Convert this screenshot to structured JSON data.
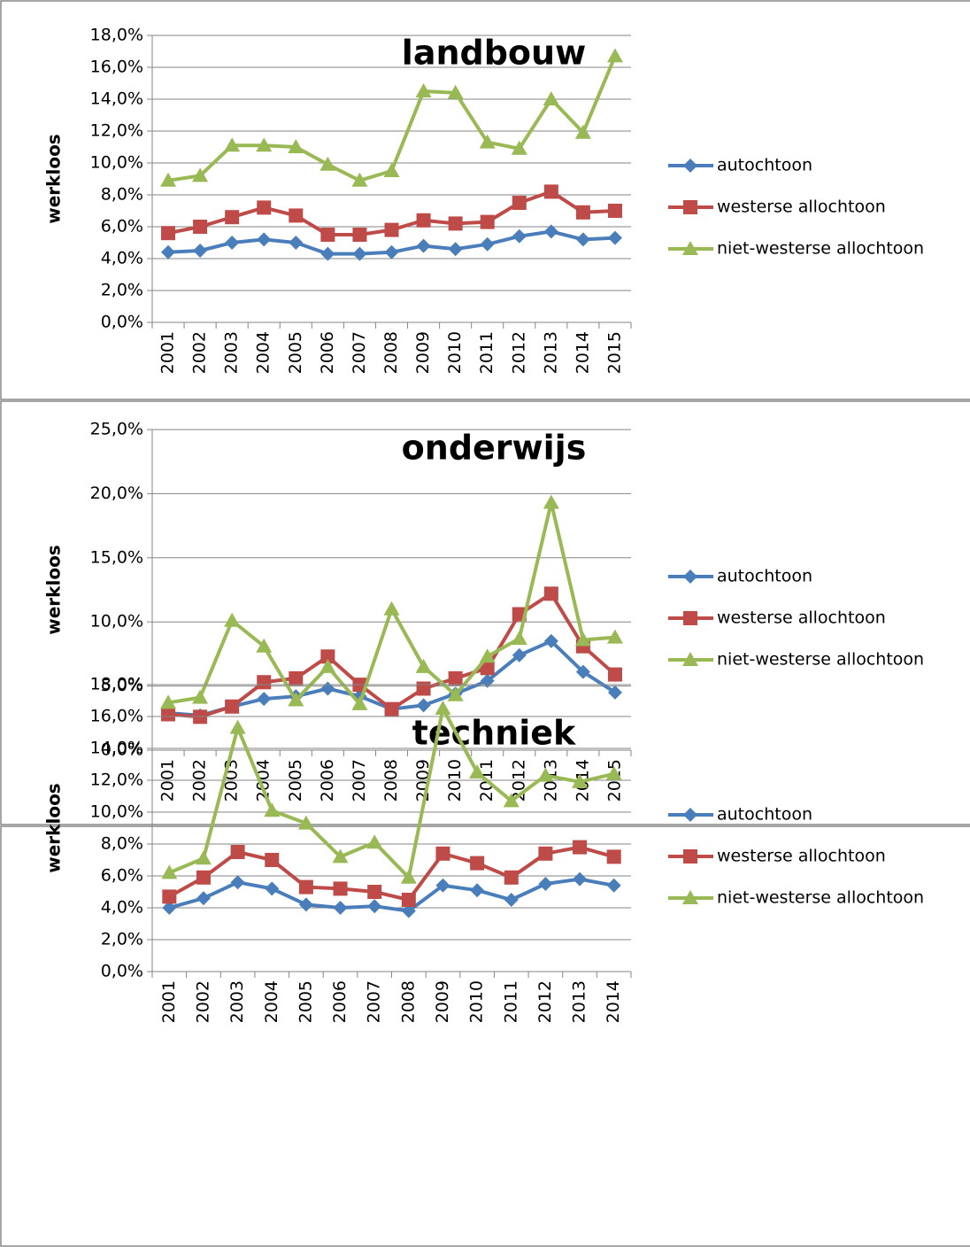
{
  "chart_data": [
    {
      "type": "line",
      "title": "landbouw",
      "ylabel": "werkloos",
      "categories": [
        "2001",
        "2002",
        "2003",
        "2004",
        "2005",
        "2006",
        "2007",
        "2008",
        "2009",
        "2010",
        "2011",
        "2012",
        "2013",
        "2014",
        "2015"
      ],
      "ylim": [
        0,
        18
      ],
      "yticks": [
        {
          "value": 0,
          "label": "0,0%"
        },
        {
          "value": 2,
          "label": "2,0%"
        },
        {
          "value": 4,
          "label": "4,0%"
        },
        {
          "value": 6,
          "label": "6,0%"
        },
        {
          "value": 8,
          "label": "8,0%"
        },
        {
          "value": 10,
          "label": "10,0%"
        },
        {
          "value": 12,
          "label": "12,0%"
        },
        {
          "value": 14,
          "label": "14,0%"
        },
        {
          "value": 16,
          "label": "16,0%"
        },
        {
          "value": 18,
          "label": "18,0%"
        }
      ],
      "grid": true,
      "legend": "right",
      "series": [
        {
          "name": "autochtoon",
          "color": "#4a7ebb",
          "marker": "diamond",
          "values": [
            4.4,
            4.5,
            5.0,
            5.2,
            5.0,
            4.3,
            4.3,
            4.4,
            4.8,
            4.6,
            4.9,
            5.4,
            5.7,
            5.2,
            5.3
          ]
        },
        {
          "name": "westerse allochtoon",
          "color": "#be4b48",
          "marker": "square",
          "values": [
            5.6,
            6.0,
            6.6,
            7.2,
            6.7,
            5.5,
            5.5,
            5.8,
            6.4,
            6.2,
            6.3,
            7.5,
            8.2,
            6.9,
            7.0
          ]
        },
        {
          "name": "niet-westerse allochtoon",
          "color": "#98b954",
          "marker": "triangle",
          "values": [
            8.9,
            9.2,
            11.1,
            11.1,
            11.0,
            9.9,
            8.9,
            9.5,
            14.5,
            14.4,
            11.3,
            10.9,
            14.0,
            11.9,
            16.7
          ]
        }
      ]
    },
    {
      "type": "line",
      "title": "onderwijs",
      "ylabel": "werkloos",
      "categories": [
        "2001",
        "2002",
        "2003",
        "2004",
        "2005",
        "2006",
        "2007",
        "2008",
        "2009",
        "2010",
        "2011",
        "2012",
        "2013",
        "2014",
        "2015"
      ],
      "ylim": [
        0,
        25
      ],
      "yticks": [
        {
          "value": 0,
          "label": "0,0%"
        },
        {
          "value": 5,
          "label": "5,0%"
        },
        {
          "value": 10,
          "label": "10,0%"
        },
        {
          "value": 15,
          "label": "15,0%"
        },
        {
          "value": 20,
          "label": "20,0%"
        },
        {
          "value": 25,
          "label": "25,0%"
        }
      ],
      "grid": true,
      "legend": "right",
      "series": [
        {
          "name": "autochtoon",
          "color": "#4a7ebb",
          "marker": "diamond",
          "values": [
            2.9,
            2.7,
            3.4,
            4.0,
            4.2,
            4.8,
            4.2,
            3.2,
            3.5,
            4.4,
            5.4,
            7.4,
            8.5,
            6.1,
            4.5
          ]
        },
        {
          "name": "westerse allochtoon",
          "color": "#be4b48",
          "marker": "square",
          "values": [
            2.8,
            2.6,
            3.4,
            5.3,
            5.6,
            7.3,
            5.1,
            3.2,
            4.8,
            5.6,
            6.4,
            10.6,
            12.2,
            8.1,
            5.9
          ]
        },
        {
          "name": "niet-westerse allochtoon",
          "color": "#98b954",
          "marker": "triangle",
          "values": [
            3.7,
            4.1,
            10.1,
            8.1,
            3.9,
            6.5,
            3.6,
            11.0,
            6.5,
            4.3,
            7.3,
            8.7,
            19.3,
            8.6,
            8.8
          ]
        }
      ]
    },
    {
      "type": "line",
      "title": "techniek",
      "ylabel": "werkloos",
      "categories": [
        "2001",
        "2002",
        "2003",
        "2004",
        "2005",
        "2006",
        "2007",
        "2008",
        "2009",
        "2010",
        "2011",
        "2012",
        "2013",
        "2014"
      ],
      "ylim": [
        0,
        18
      ],
      "yticks": [
        {
          "value": 0,
          "label": "0,0%"
        },
        {
          "value": 2,
          "label": "2,0%"
        },
        {
          "value": 4,
          "label": "4,0%"
        },
        {
          "value": 6,
          "label": "6,0%"
        },
        {
          "value": 8,
          "label": "8,0%"
        },
        {
          "value": 10,
          "label": "10,0%"
        },
        {
          "value": 12,
          "label": "12,0%"
        },
        {
          "value": 14,
          "label": "14,0%"
        },
        {
          "value": 16,
          "label": "16,0%"
        },
        {
          "value": 18,
          "label": "18,0%"
        }
      ],
      "grid": true,
      "legend": "right",
      "series": [
        {
          "name": "autochtoon",
          "color": "#4a7ebb",
          "marker": "diamond",
          "values": [
            4.0,
            4.6,
            5.6,
            5.2,
            4.2,
            4.0,
            4.1,
            3.8,
            5.4,
            5.1,
            4.5,
            5.5,
            5.8,
            5.4
          ]
        },
        {
          "name": "westerse allochtoon",
          "color": "#be4b48",
          "marker": "square",
          "values": [
            4.7,
            5.9,
            7.5,
            7.0,
            5.3,
            5.2,
            5.0,
            4.5,
            7.4,
            6.8,
            5.9,
            7.4,
            7.8,
            7.2
          ]
        },
        {
          "name": "niet-westerse allochtoon",
          "color": "#98b954",
          "marker": "triangle",
          "values": [
            6.2,
            7.1,
            15.3,
            10.1,
            9.3,
            7.2,
            8.1,
            5.9,
            16.5,
            12.5,
            10.7,
            12.3,
            11.9,
            12.4
          ]
        }
      ]
    }
  ]
}
